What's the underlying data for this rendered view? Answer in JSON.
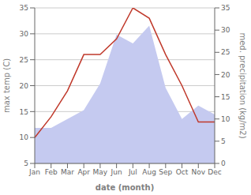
{
  "chart_data": {
    "type": "line",
    "categories": [
      "Jan",
      "Feb",
      "Mar",
      "Apr",
      "May",
      "Jun",
      "Jul",
      "Aug",
      "Sep",
      "Oct",
      "Nov",
      "Dec"
    ],
    "series": [
      {
        "type": "area",
        "color": "#c5caf0",
        "values": [
          8,
          8,
          10,
          12,
          18,
          29,
          27,
          31,
          17,
          10,
          13,
          11
        ],
        "axis": "y2"
      },
      {
        "type": "line",
        "color": "#c0392b",
        "values": [
          10,
          14,
          19,
          26,
          26,
          29,
          35,
          33,
          26,
          20,
          13,
          13
        ]
      }
    ],
    "xlabel": "date (month)",
    "ylabel": "max temp (C)",
    "y2label": "med. precipitation (kg/m2)",
    "ylim": [
      5,
      35
    ],
    "yticks": [
      5,
      10,
      15,
      20,
      25,
      30,
      35
    ],
    "y2lim": [
      0,
      35
    ],
    "y2ticks": [
      0,
      5,
      10,
      15,
      20,
      25,
      30,
      35
    ],
    "grid": true
  }
}
